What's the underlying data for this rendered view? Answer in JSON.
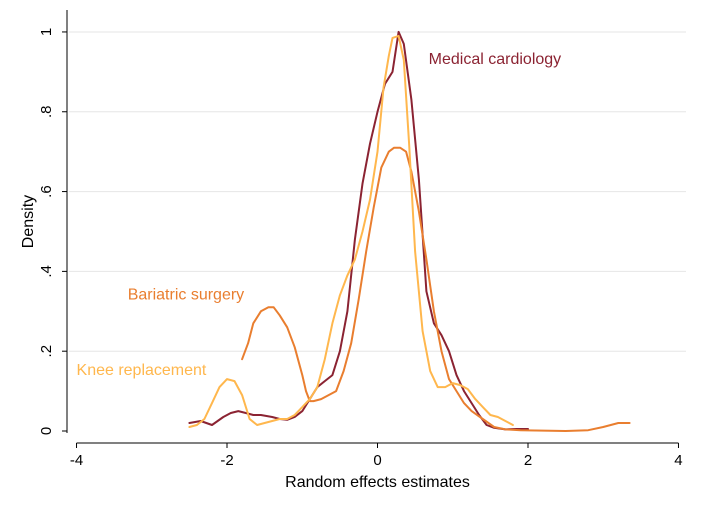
{
  "chart_data": {
    "type": "line",
    "title": "",
    "xlabel": "Random effects estimates",
    "ylabel": "Density",
    "xlim": [
      -4.1,
      4.1
    ],
    "ylim": [
      -0.005,
      1.055
    ],
    "grid": "horizontal",
    "x_ticks": [
      -4,
      -2,
      0,
      2,
      4
    ],
    "x_tick_labels": [
      "-4",
      "-2",
      "0",
      "2",
      "4"
    ],
    "y_ticks": [
      0,
      0.2,
      0.4,
      0.6,
      0.8,
      1
    ],
    "y_tick_labels": [
      "0",
      ".2",
      ".4",
      ".6",
      ".8",
      "1"
    ],
    "series": [
      {
        "name": "Medical cardiology",
        "color": "#8b2332",
        "x": [
          -2.5,
          -2.35,
          -2.2,
          -2.05,
          -1.95,
          -1.85,
          -1.75,
          -1.65,
          -1.55,
          -1.4,
          -1.3,
          -1.2,
          -1.1,
          -1.0,
          -0.9,
          -0.8,
          -0.7,
          -0.6,
          -0.5,
          -0.4,
          -0.3,
          -0.2,
          -0.1,
          0.0,
          0.1,
          0.2,
          0.28,
          0.35,
          0.45,
          0.55,
          0.65,
          0.75,
          0.85,
          0.95,
          1.05,
          1.15,
          1.25,
          1.35,
          1.45,
          1.55,
          1.7,
          1.85,
          2.0
        ],
        "y": [
          0.02,
          0.025,
          0.015,
          0.035,
          0.045,
          0.05,
          0.045,
          0.04,
          0.04,
          0.035,
          0.03,
          0.028,
          0.035,
          0.05,
          0.08,
          0.11,
          0.125,
          0.14,
          0.2,
          0.3,
          0.48,
          0.62,
          0.72,
          0.8,
          0.87,
          0.9,
          1.0,
          0.97,
          0.83,
          0.63,
          0.35,
          0.27,
          0.24,
          0.2,
          0.14,
          0.1,
          0.07,
          0.04,
          0.015,
          0.008,
          0.004,
          0.005,
          0.005
        ]
      },
      {
        "name": "Bariatric surgery",
        "color": "#e97e2f",
        "x": [
          -1.8,
          -1.72,
          -1.65,
          -1.55,
          -1.45,
          -1.38,
          -1.3,
          -1.2,
          -1.1,
          -1.0,
          -0.95,
          -0.9,
          -0.85,
          -0.75,
          -0.65,
          -0.55,
          -0.45,
          -0.35,
          -0.25,
          -0.15,
          -0.05,
          0.05,
          0.15,
          0.22,
          0.3,
          0.38,
          0.45,
          0.55,
          0.65,
          0.75,
          0.85,
          0.95,
          1.05,
          1.15,
          1.25,
          1.4,
          1.55,
          1.7,
          1.9,
          2.2,
          2.5,
          2.8,
          3.0,
          3.2,
          3.35
        ],
        "y": [
          0.18,
          0.22,
          0.27,
          0.3,
          0.31,
          0.31,
          0.29,
          0.26,
          0.21,
          0.14,
          0.1,
          0.075,
          0.075,
          0.08,
          0.09,
          0.1,
          0.15,
          0.22,
          0.33,
          0.45,
          0.56,
          0.66,
          0.7,
          0.71,
          0.71,
          0.7,
          0.65,
          0.55,
          0.43,
          0.3,
          0.2,
          0.13,
          0.1,
          0.07,
          0.05,
          0.03,
          0.01,
          0.004,
          0.002,
          0.001,
          0.0,
          0.002,
          0.01,
          0.02,
          0.02
        ]
      },
      {
        "name": "Knee replacement",
        "color": "#ffb74d",
        "x": [
          -2.5,
          -2.4,
          -2.3,
          -2.2,
          -2.1,
          -2.0,
          -1.9,
          -1.8,
          -1.7,
          -1.6,
          -1.5,
          -1.4,
          -1.3,
          -1.2,
          -1.1,
          -1.0,
          -0.9,
          -0.8,
          -0.7,
          -0.6,
          -0.5,
          -0.4,
          -0.3,
          -0.2,
          -0.1,
          0.0,
          0.08,
          0.15,
          0.2,
          0.28,
          0.35,
          0.42,
          0.5,
          0.6,
          0.7,
          0.8,
          0.9,
          1.0,
          1.1,
          1.2,
          1.3,
          1.4,
          1.5,
          1.6,
          1.7,
          1.8
        ],
        "y": [
          0.01,
          0.015,
          0.03,
          0.07,
          0.11,
          0.13,
          0.125,
          0.09,
          0.03,
          0.015,
          0.02,
          0.025,
          0.03,
          0.03,
          0.04,
          0.06,
          0.08,
          0.11,
          0.18,
          0.27,
          0.34,
          0.39,
          0.43,
          0.5,
          0.58,
          0.7,
          0.86,
          0.94,
          0.985,
          0.99,
          0.93,
          0.72,
          0.45,
          0.25,
          0.15,
          0.11,
          0.11,
          0.12,
          0.115,
          0.105,
          0.08,
          0.06,
          0.04,
          0.035,
          0.025,
          0.015
        ]
      }
    ],
    "annotations": [
      {
        "text": "Medical cardiology",
        "color": "#8b2332",
        "x": 0.68,
        "y": 0.92
      },
      {
        "text": "Bariatric surgery",
        "color": "#e97e2f",
        "x": -3.32,
        "y": 0.33
      },
      {
        "text": "Knee replacement",
        "color": "#ffb74d",
        "x": -4.0,
        "y": 0.14
      }
    ],
    "legend": "none"
  }
}
